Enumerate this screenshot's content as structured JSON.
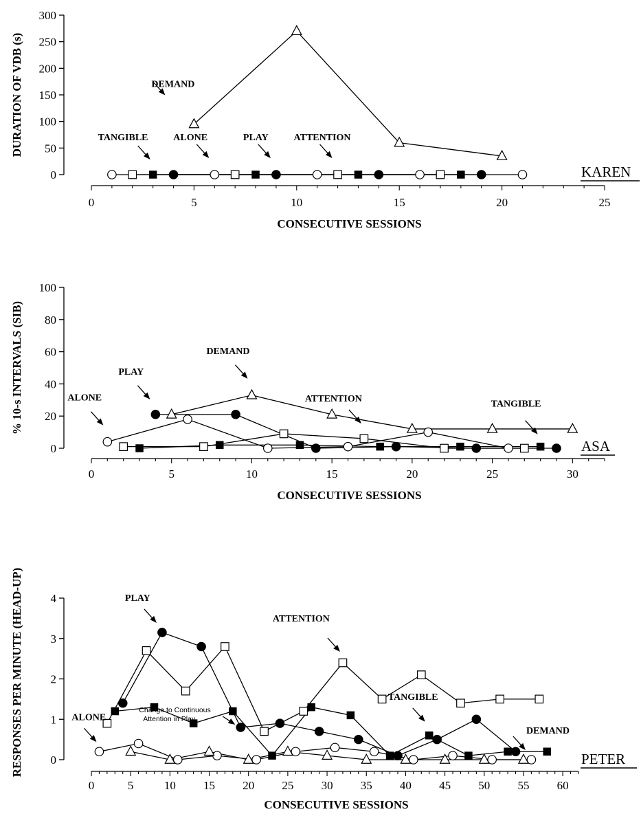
{
  "chart_data": [
    {
      "type": "line",
      "participant": "KAREN",
      "xlabel": "CONSECUTIVE SESSIONS",
      "ylabel": "DURATION OF VDB (s)",
      "xlim": [
        0,
        25
      ],
      "ylim": [
        0,
        300
      ],
      "xticks": [
        0,
        5,
        10,
        15,
        20,
        25
      ],
      "yticks": [
        0,
        50,
        100,
        150,
        200,
        250,
        300
      ],
      "series": [
        {
          "name": "ALONE",
          "marker": "open-circle",
          "x": [
            1,
            6,
            11,
            16,
            21
          ],
          "y": [
            0,
            0,
            0,
            0,
            0
          ]
        },
        {
          "name": "ATTENTION",
          "marker": "open-square",
          "x": [
            2,
            7,
            12,
            17
          ],
          "y": [
            0,
            0,
            0,
            0
          ]
        },
        {
          "name": "TANGIBLE",
          "marker": "filled-square",
          "x": [
            3,
            8,
            13,
            18
          ],
          "y": [
            0,
            0,
            0,
            0
          ]
        },
        {
          "name": "PLAY",
          "marker": "filled-circle",
          "x": [
            4,
            9,
            14,
            19
          ],
          "y": [
            0,
            0,
            0,
            0
          ]
        },
        {
          "name": "DEMAND",
          "marker": "open-triangle",
          "x": [
            5,
            10,
            15,
            20
          ],
          "y": [
            95,
            270,
            60,
            35
          ]
        }
      ],
      "annotations": [
        {
          "text": "DEMAND",
          "series": "DEMAND",
          "target_x": 5
        },
        {
          "text": "TANGIBLE",
          "series": "TANGIBLE",
          "target_x": 3
        },
        {
          "text": "ALONE",
          "series": "ALONE",
          "target_x": 6
        },
        {
          "text": "PLAY",
          "series": "PLAY",
          "target_x": 9
        },
        {
          "text": "ATTENTION",
          "series": "ATTENTION",
          "target_x": 12
        }
      ]
    },
    {
      "type": "line",
      "participant": "ASA",
      "xlabel": "CONSECUTIVE SESSIONS",
      "ylabel": "% 10-s INTERVALS (SIB)",
      "xlim": [
        0,
        32
      ],
      "ylim": [
        0,
        100
      ],
      "xticks": [
        0,
        5,
        10,
        15,
        20,
        25,
        30
      ],
      "yticks": [
        0,
        20,
        40,
        60,
        80,
        100
      ],
      "series": [
        {
          "name": "ALONE",
          "marker": "open-circle",
          "x": [
            1,
            6,
            11,
            16,
            21,
            26
          ],
          "y": [
            4,
            18,
            0,
            1,
            10,
            0
          ]
        },
        {
          "name": "ATTENTION",
          "marker": "open-square",
          "x": [
            2,
            7,
            12,
            17,
            22,
            27
          ],
          "y": [
            1,
            1,
            9,
            6,
            0,
            0
          ]
        },
        {
          "name": "TANGIBLE",
          "marker": "filled-square",
          "x": [
            3,
            8,
            13,
            18,
            23,
            28
          ],
          "y": [
            0,
            2,
            2,
            1,
            1,
            1
          ]
        },
        {
          "name": "PLAY",
          "marker": "filled-circle",
          "x": [
            4,
            9,
            14,
            19,
            24,
            29
          ],
          "y": [
            21,
            21,
            0,
            1,
            0,
            0
          ]
        },
        {
          "name": "DEMAND",
          "marker": "open-triangle",
          "x": [
            5,
            10,
            15,
            20,
            25,
            30
          ],
          "y": [
            21,
            33,
            21,
            12,
            12,
            12
          ]
        }
      ],
      "annotations": [
        {
          "text": "ALONE",
          "series": "ALONE",
          "target_x": 1
        },
        {
          "text": "PLAY",
          "series": "PLAY",
          "target_x": 4
        },
        {
          "text": "DEMAND",
          "series": "DEMAND",
          "target_x": 10
        },
        {
          "text": "ATTENTION",
          "series": "ATTENTION",
          "target_x": 17
        },
        {
          "text": "TANGIBLE",
          "series": "TANGIBLE",
          "target_x": 28
        }
      ]
    },
    {
      "type": "line",
      "participant": "PETER",
      "xlabel": "CONSECUTIVE SESSIONS",
      "ylabel": "RESPONSES PER MINUTE (HEAD-UP)",
      "xlim": [
        0,
        62
      ],
      "ylim": [
        0,
        4
      ],
      "xticks": [
        0,
        5,
        10,
        15,
        20,
        25,
        30,
        35,
        40,
        45,
        50,
        55,
        60
      ],
      "yticks": [
        0,
        1,
        2,
        3,
        4
      ],
      "series": [
        {
          "name": "ALONE",
          "marker": "open-circle",
          "x": [
            1,
            6,
            11,
            16,
            21,
            26,
            31,
            36,
            41,
            46,
            51,
            56
          ],
          "y": [
            0.2,
            0.4,
            0,
            0.1,
            0,
            0.2,
            0.3,
            0.2,
            0,
            0.1,
            0,
            0
          ]
        },
        {
          "name": "ATTENTION",
          "marker": "open-square",
          "x": [
            2,
            7,
            12,
            17,
            22,
            27,
            32,
            37,
            42,
            47,
            52,
            57
          ],
          "y": [
            0.9,
            2.7,
            1.7,
            2.8,
            0.7,
            1.2,
            2.4,
            1.5,
            2.1,
            1.4,
            1.5,
            1.5
          ]
        },
        {
          "name": "TANGIBLE",
          "marker": "filled-square",
          "x": [
            3,
            8,
            13,
            18,
            23,
            28,
            33,
            38,
            43,
            48,
            53,
            58
          ],
          "y": [
            1.2,
            1.3,
            0.9,
            1.2,
            0.1,
            1.3,
            1.1,
            0.1,
            0.6,
            0.1,
            0.2,
            0.2
          ]
        },
        {
          "name": "PLAY",
          "marker": "filled-circle",
          "x": [
            4,
            9,
            14,
            19,
            24,
            29,
            34,
            39,
            44,
            49,
            54
          ],
          "y": [
            1.4,
            3.15,
            2.8,
            0.8,
            0.9,
            0.7,
            0.5,
            0.1,
            0.5,
            1.0,
            0.2
          ]
        },
        {
          "name": "DEMAND",
          "marker": "open-triangle",
          "x": [
            5,
            10,
            15,
            20,
            25,
            30,
            35,
            40,
            45,
            50,
            55
          ],
          "y": [
            0.2,
            0,
            0.2,
            0,
            0.2,
            0.1,
            0,
            0,
            0,
            0,
            0
          ]
        }
      ],
      "annotations": [
        {
          "text": "PLAY",
          "series": "PLAY",
          "target_x": 9
        },
        {
          "text": "ATTENTION",
          "series": "ATTENTION",
          "target_x": 32
        },
        {
          "text": "ALONE",
          "series": "ALONE",
          "target_x": 1
        },
        {
          "text": "TANGIBLE",
          "series": "TANGIBLE",
          "target_x": 43
        },
        {
          "text": "DEMAND",
          "series": "DEMAND",
          "target_x": 55
        },
        {
          "text": "Change to Continuous|Attention in Play",
          "series": "PLAY",
          "target_x": 19
        }
      ]
    }
  ]
}
